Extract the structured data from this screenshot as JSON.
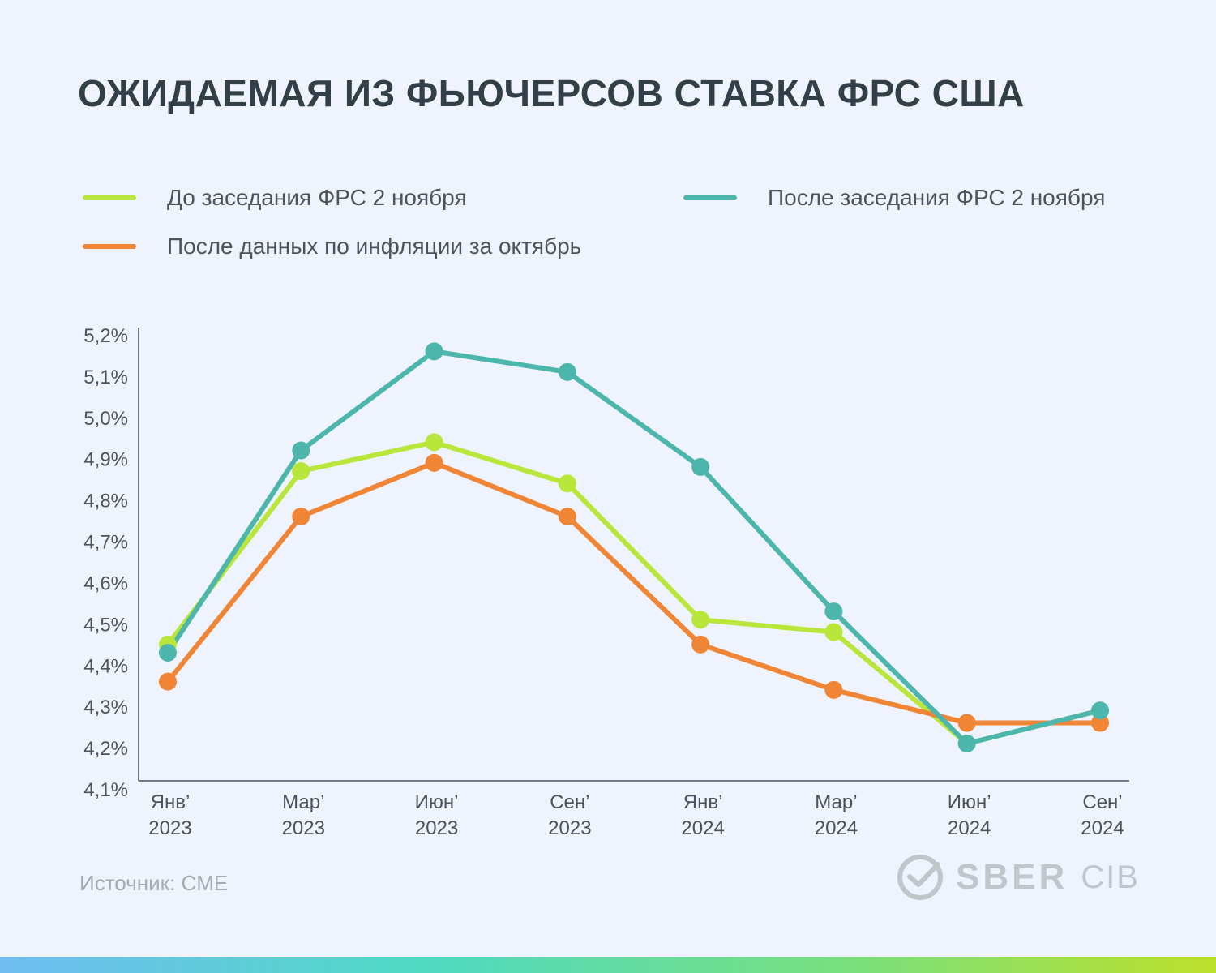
{
  "title": "ОЖИДАЕМАЯ ИЗ ФЬЮЧЕРСОВ СТАВКА ФРС США",
  "source": "Источник: CME",
  "logo": {
    "brand": "SBER",
    "suffix": "CIB"
  },
  "legend": [
    {
      "label": "До заседания ФРС 2 ноября",
      "color": "#b8e63a"
    },
    {
      "label": "После заседания ФРС 2 ноября",
      "color": "#4db6ac"
    },
    {
      "label": "После данных по инфляции за октябрь",
      "color": "#ef8535"
    }
  ],
  "chart_data": {
    "type": "line",
    "categories": [
      [
        "Янв’",
        "2023"
      ],
      [
        "Мар’",
        "2023"
      ],
      [
        "Июн’",
        "2023"
      ],
      [
        "Сен’",
        "2023"
      ],
      [
        "Янв’",
        "2024"
      ],
      [
        "Мар’",
        "2024"
      ],
      [
        "Июн’",
        "2024"
      ],
      [
        "Сен’",
        "2024"
      ]
    ],
    "y_ticks": [
      "4,1%",
      "4,2%",
      "4,3%",
      "4,4%",
      "4,5%",
      "4,6%",
      "4,7%",
      "4,8%",
      "4,9%",
      "5,0%",
      "5,1%",
      "5,2%"
    ],
    "ylim": [
      4.1,
      5.2
    ],
    "series": [
      {
        "name": "До заседания ФРС 2 ноября",
        "color": "#b8e63a",
        "values": [
          4.45,
          4.87,
          4.94,
          4.84,
          4.51,
          4.48,
          4.21,
          4.29
        ]
      },
      {
        "name": "После данных по инфляции за октябрь",
        "color": "#ef8535",
        "values": [
          4.36,
          4.76,
          4.89,
          4.76,
          4.45,
          4.34,
          4.26,
          4.26
        ]
      },
      {
        "name": "После заседания ФРС 2 ноября",
        "color": "#4db6ac",
        "values": [
          4.43,
          4.92,
          5.16,
          5.11,
          4.88,
          4.53,
          4.21,
          4.29
        ]
      }
    ],
    "grid": false,
    "legend_position": "top"
  }
}
